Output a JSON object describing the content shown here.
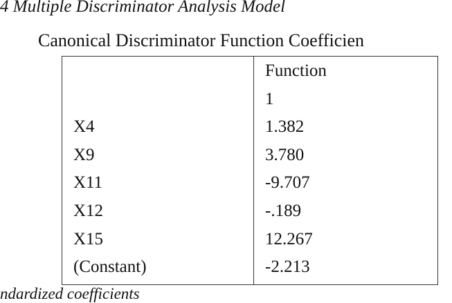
{
  "header": {
    "title": "4 Multiple Discriminator Analysis Model",
    "subtitle": "Canonical Discriminator Function Coefficien"
  },
  "table": {
    "header": [
      "Function",
      "1"
    ],
    "rows": [
      [
        "X4",
        "1.382"
      ],
      [
        "X9",
        "3.780"
      ],
      [
        "X11",
        "-9.707"
      ],
      [
        "X12",
        "-.189"
      ],
      [
        "X15",
        "12.267"
      ],
      [
        "(Constant)",
        "-2.213"
      ]
    ]
  },
  "footer": "ndardized coefficients"
}
